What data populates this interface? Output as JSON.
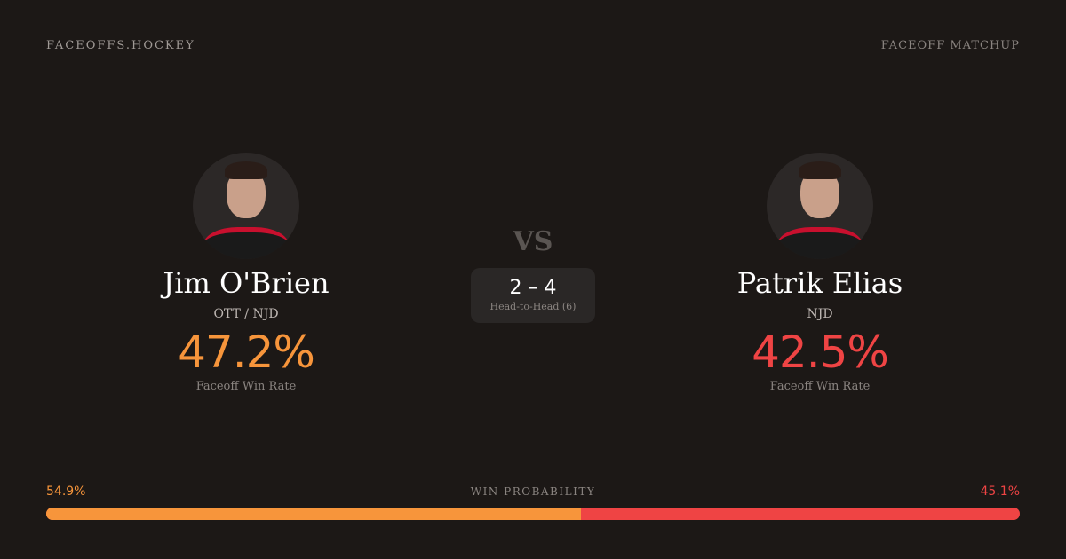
{
  "header": {
    "brand": "FACEOFFS.HOCKEY",
    "page_type": "FACEOFF MATCHUP"
  },
  "players": [
    {
      "name": "Jim O'Brien",
      "team": "OTT / NJD",
      "win_rate": "47.2%",
      "win_rate_label": "Faceoff Win Rate",
      "color": "#f7953b"
    },
    {
      "name": "Patrik Elias",
      "team": "NJD",
      "win_rate": "42.5%",
      "win_rate_label": "Faceoff Win Rate",
      "color": "#ef4444"
    }
  ],
  "vs": "VS",
  "head_to_head": {
    "score": "2 – 4",
    "label": "Head-to-Head (6)"
  },
  "win_probability": {
    "label": "WIN PROBABILITY",
    "left": "54.9%",
    "right": "45.1%",
    "left_fraction": 0.549
  }
}
